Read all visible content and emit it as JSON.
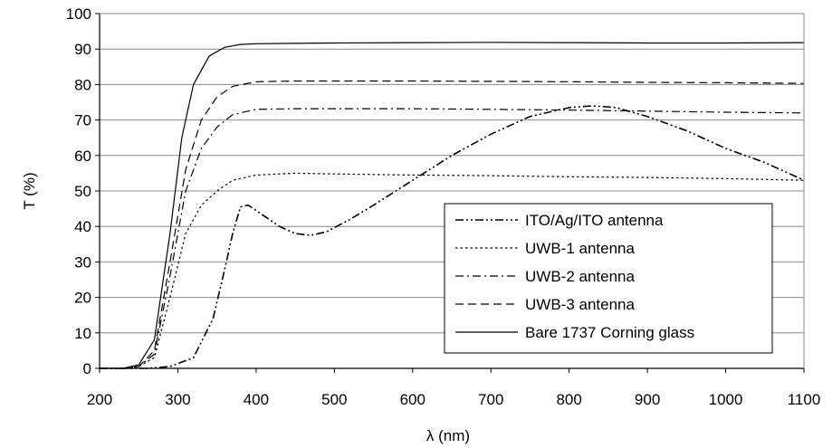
{
  "chart_data": {
    "type": "line",
    "title": "",
    "xlabel": "λ (nm)",
    "ylabel": "T (%)",
    "xlim": [
      200,
      1100
    ],
    "ylim": [
      0,
      100
    ],
    "x_ticks": [
      200,
      300,
      400,
      500,
      600,
      700,
      800,
      900,
      1000,
      1100
    ],
    "y_ticks": [
      0,
      10,
      20,
      30,
      40,
      50,
      60,
      70,
      80,
      90,
      100
    ],
    "grid": "horizontal",
    "legend_position": "bottom-right",
    "series": [
      {
        "name": "ITO/Ag/ITO antenna",
        "dash": "dash-dot-dot",
        "x": [
          200,
          230,
          260,
          290,
          320,
          345,
          360,
          370,
          380,
          390,
          410,
          430,
          450,
          470,
          490,
          520,
          550,
          600,
          650,
          700,
          750,
          800,
          830,
          860,
          900,
          950,
          1000,
          1050,
          1100
        ],
        "y": [
          0,
          0,
          0,
          0.5,
          3,
          14,
          28,
          38,
          45.5,
          46,
          43,
          40,
          38,
          37.5,
          38.5,
          42,
          46,
          53,
          60,
          66,
          71,
          73.5,
          74,
          73.5,
          71,
          67,
          62,
          58,
          53
        ]
      },
      {
        "name": "UWB-1 antenna",
        "dash": "dot",
        "x": [
          200,
          230,
          250,
          270,
          290,
          310,
          330,
          350,
          370,
          400,
          450,
          500,
          600,
          700,
          800,
          900,
          1000,
          1100
        ],
        "y": [
          0,
          0,
          0.5,
          3,
          20,
          38,
          46,
          50,
          53,
          54.5,
          55,
          54.8,
          54.5,
          54.3,
          54,
          53.8,
          53.5,
          53
        ]
      },
      {
        "name": "UWB-2 antenna",
        "dash": "dash-dot",
        "x": [
          200,
          230,
          250,
          270,
          290,
          310,
          330,
          350,
          370,
          400,
          450,
          500,
          600,
          700,
          800,
          900,
          1000,
          1100
        ],
        "y": [
          0,
          0,
          0.5,
          4,
          26,
          50,
          62,
          68,
          71.5,
          73,
          73.2,
          73.2,
          73.2,
          73,
          72.8,
          72.5,
          72.2,
          72
        ]
      },
      {
        "name": "UWB-3 antenna",
        "dash": "dash",
        "x": [
          200,
          230,
          250,
          270,
          290,
          310,
          330,
          350,
          370,
          400,
          450,
          500,
          600,
          700,
          800,
          900,
          1000,
          1100
        ],
        "y": [
          0,
          0,
          0.5,
          5,
          30,
          56,
          70,
          76.5,
          79.5,
          80.8,
          81,
          81,
          81,
          80.9,
          80.8,
          80.6,
          80.5,
          80.3
        ]
      },
      {
        "name": "Bare 1737 Corning glass",
        "dash": "solid",
        "x": [
          200,
          230,
          250,
          270,
          290,
          305,
          320,
          340,
          360,
          380,
          400,
          450,
          500,
          600,
          700,
          800,
          900,
          1000,
          1100
        ],
        "y": [
          0,
          0,
          1,
          8,
          38,
          65,
          80,
          88,
          90.5,
          91.3,
          91.5,
          91.6,
          91.7,
          91.8,
          91.9,
          91.8,
          91.7,
          91.7,
          91.8
        ]
      }
    ]
  }
}
